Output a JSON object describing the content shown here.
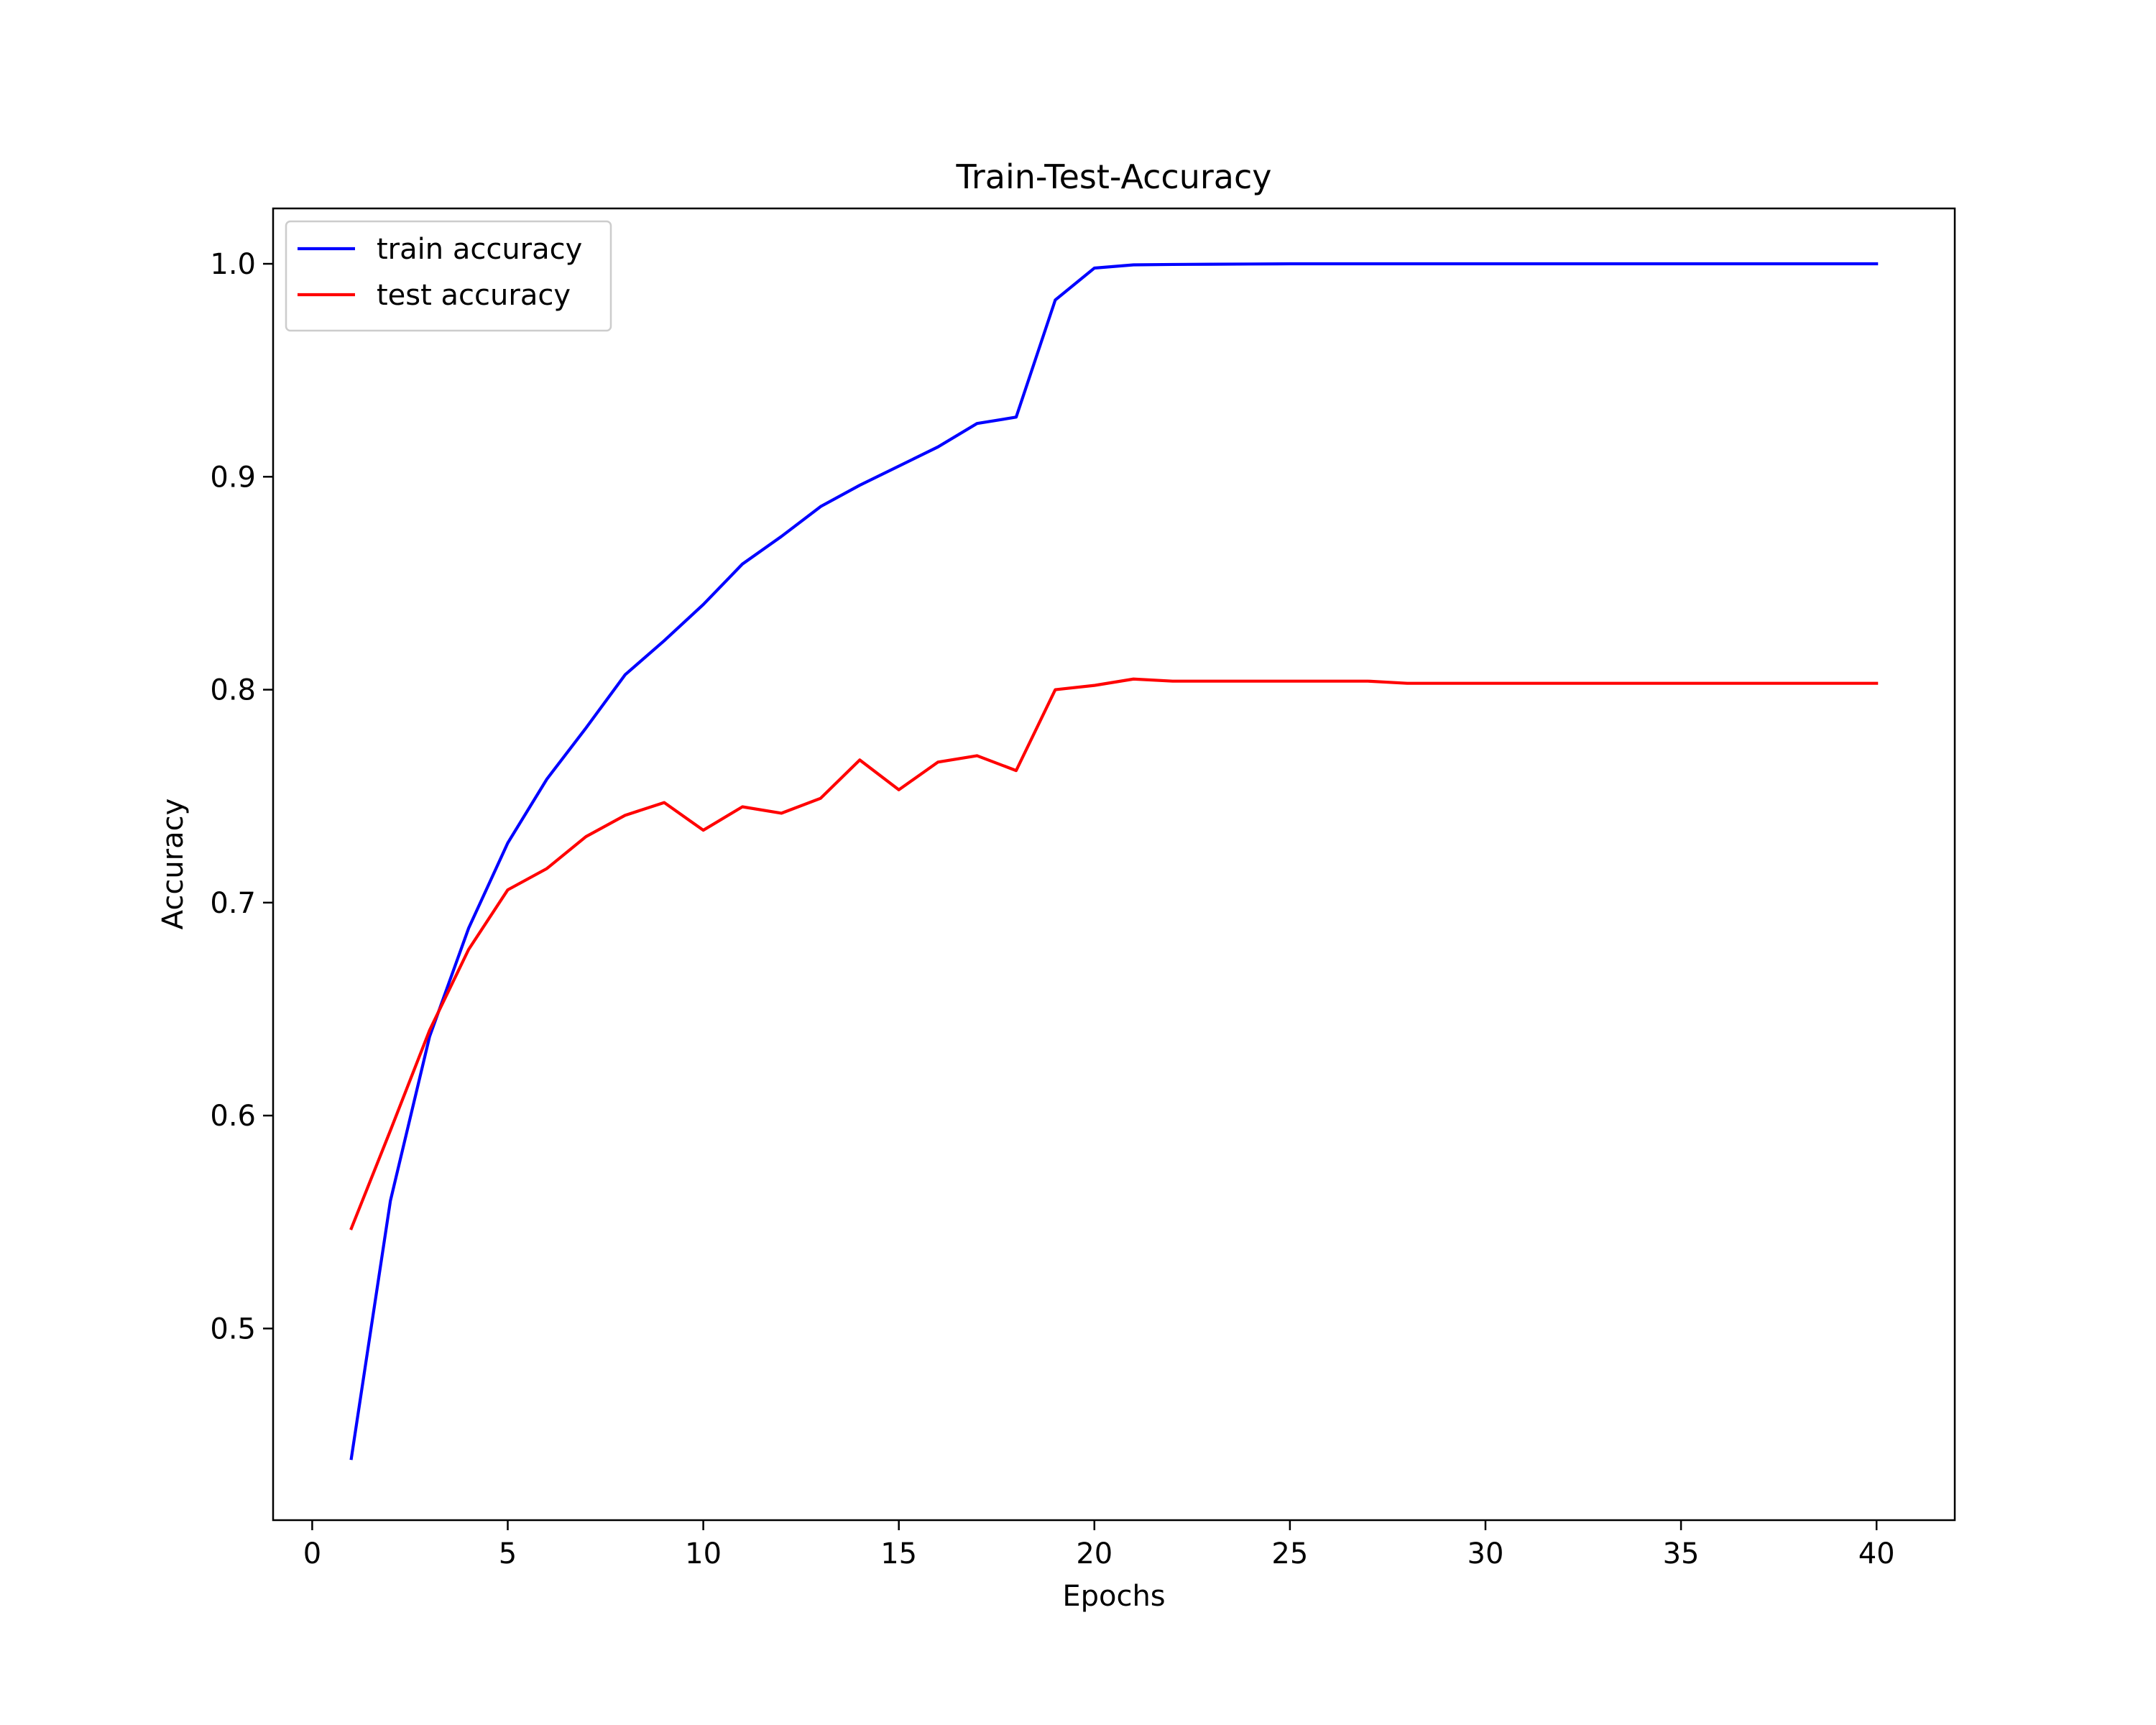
{
  "chart_data": {
    "type": "line",
    "title": "Train-Test-Accuracy",
    "xlabel": "Epochs",
    "ylabel": "Accuracy",
    "xlim": [
      -1,
      42
    ],
    "ylim": [
      0.41,
      1.026
    ],
    "xticks": [
      0,
      5,
      10,
      15,
      20,
      25,
      30,
      35,
      40
    ],
    "yticks": [
      0.5,
      0.6,
      0.7,
      0.8,
      0.9,
      1.0
    ],
    "xtick_labels": [
      "0",
      "5",
      "10",
      "15",
      "20",
      "25",
      "30",
      "35",
      "40"
    ],
    "ytick_labels": [
      "0.5",
      "0.6",
      "0.7",
      "0.8",
      "0.9",
      "1.0"
    ],
    "grid": false,
    "legend_position": "top-left",
    "x": [
      1,
      2,
      3,
      4,
      5,
      6,
      7,
      8,
      9,
      10,
      11,
      12,
      13,
      14,
      15,
      16,
      17,
      18,
      19,
      20,
      21,
      22,
      23,
      24,
      25,
      26,
      27,
      28,
      29,
      30,
      31,
      32,
      33,
      34,
      35,
      36,
      37,
      38,
      39,
      40
    ],
    "series": [
      {
        "name": "train accuracy",
        "color": "#0000ff",
        "values": [
          0.439,
          0.56,
          0.637,
          0.688,
          0.728,
          0.758,
          0.782,
          0.807,
          0.823,
          0.84,
          0.859,
          0.872,
          0.886,
          0.896,
          0.905,
          0.914,
          0.925,
          0.928,
          0.983,
          0.998,
          0.9995,
          0.9997,
          0.9998,
          0.9999,
          1.0,
          1.0,
          1.0,
          1.0,
          1.0,
          1.0,
          1.0,
          1.0,
          1.0,
          1.0,
          1.0,
          1.0,
          1.0,
          1.0,
          1.0,
          1.0
        ]
      },
      {
        "name": "test accuracy",
        "color": "#ff0000",
        "values": [
          0.547,
          0.593,
          0.64,
          0.678,
          0.706,
          0.716,
          0.731,
          0.741,
          0.747,
          0.734,
          0.745,
          0.742,
          0.749,
          0.767,
          0.753,
          0.766,
          0.769,
          0.762,
          0.8,
          0.802,
          0.805,
          0.804,
          0.804,
          0.804,
          0.804,
          0.804,
          0.804,
          0.803,
          0.803,
          0.803,
          0.803,
          0.803,
          0.803,
          0.803,
          0.803,
          0.803,
          0.803,
          0.803,
          0.803,
          0.803
        ]
      }
    ]
  }
}
